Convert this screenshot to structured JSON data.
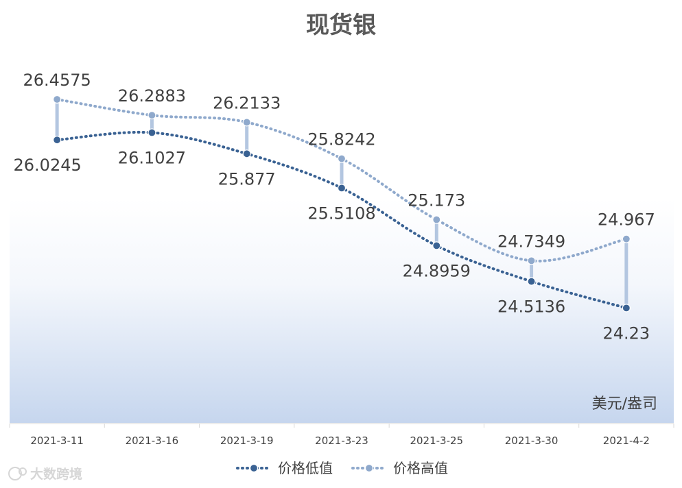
{
  "chart_data": {
    "type": "line",
    "title": "现货银",
    "unit_label": "美元/盎司",
    "categories": [
      "2021-3-11",
      "2021-3-16",
      "2021-3-19",
      "2021-3-23",
      "2021-3-25",
      "2021-3-30",
      "2021-4-2"
    ],
    "series": [
      {
        "name": "价格低值",
        "color": "#3a6293",
        "values": [
          26.0245,
          26.1027,
          25.877,
          25.5108,
          24.8959,
          24.5136,
          24.23
        ],
        "labels": [
          "26.0245",
          "26.1027",
          "25.877",
          "25.5108",
          "24.8959",
          "24.5136",
          "24.23"
        ]
      },
      {
        "name": "价格高值",
        "color": "#8fa9cc",
        "values": [
          26.4575,
          26.2883,
          26.2133,
          25.8242,
          25.173,
          24.7349,
          24.967
        ],
        "labels": [
          "26.4575",
          "26.2883",
          "26.2133",
          "25.8242",
          "25.173",
          "24.7349",
          "24.967"
        ]
      }
    ],
    "grid": false,
    "legend_position": "bottom",
    "data_labels": true,
    "high_low_lines": true,
    "smooth": true
  },
  "watermark": {
    "logo_text": "大数跨境"
  }
}
